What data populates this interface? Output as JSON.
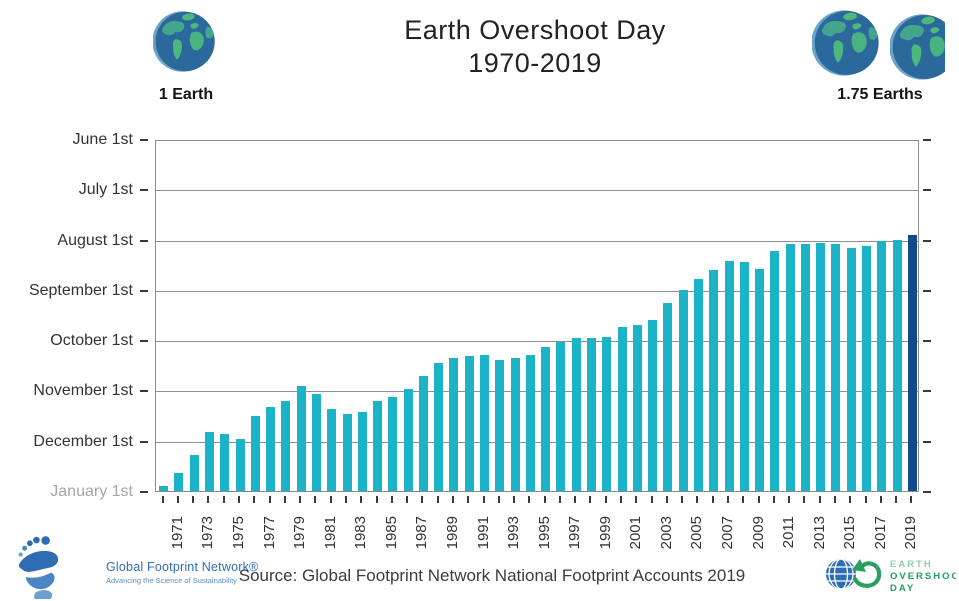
{
  "header": {
    "title_line1": "Earth Overshoot Day",
    "title_line2": "1970-2019",
    "left_badge_label": "1 Earth",
    "right_badge_label": "1.75 Earths"
  },
  "chart_data": {
    "type": "bar",
    "title": "Earth Overshoot Day 1970-2019",
    "y_axis": {
      "tick_labels": [
        "June 1st",
        "July 1st",
        "August 1st",
        "September 1st",
        "October 1st",
        "November 1st",
        "December 1st",
        "January 1st"
      ],
      "muted_tick_label": "January 1st",
      "range": "January 1st (bottom) to June 1st (top)",
      "grid": "on"
    },
    "x_axis": {
      "tick_labels": [
        "1971",
        "1973",
        "1975",
        "1977",
        "1979",
        "1981",
        "1983",
        "1985",
        "1987",
        "1989",
        "1991",
        "1993",
        "1995",
        "1997",
        "1999",
        "2001",
        "2003",
        "2005",
        "2007",
        "2009",
        "2011",
        "2013",
        "2015",
        "2017",
        "2019"
      ],
      "ticks_every_year": true
    },
    "highlight_year": 2019,
    "colors": {
      "bar": "#1db3c6",
      "highlight_bar": "#12498c",
      "grid": "#8f8f8f",
      "axis_text": "#333333",
      "muted_axis_text": "#a6a6a6"
    },
    "bars": [
      {
        "year": 1970,
        "date": "Dec 29",
        "month": 12,
        "day": 29
      },
      {
        "year": 1971,
        "date": "Dec 21",
        "month": 12,
        "day": 21
      },
      {
        "year": 1972,
        "date": "Dec 10",
        "month": 12,
        "day": 10
      },
      {
        "year": 1973,
        "date": "Nov 26",
        "month": 11,
        "day": 26
      },
      {
        "year": 1974,
        "date": "Nov 27",
        "month": 11,
        "day": 27
      },
      {
        "year": 1975,
        "date": "Nov 30",
        "month": 11,
        "day": 30
      },
      {
        "year": 1976,
        "date": "Nov 16",
        "month": 11,
        "day": 16
      },
      {
        "year": 1977,
        "date": "Nov 11",
        "month": 11,
        "day": 11
      },
      {
        "year": 1978,
        "date": "Nov 7",
        "month": 11,
        "day": 7
      },
      {
        "year": 1979,
        "date": "Oct 29",
        "month": 10,
        "day": 29
      },
      {
        "year": 1980,
        "date": "Nov 3",
        "month": 11,
        "day": 3
      },
      {
        "year": 1981,
        "date": "Nov 12",
        "month": 11,
        "day": 12
      },
      {
        "year": 1982,
        "date": "Nov 15",
        "month": 11,
        "day": 15
      },
      {
        "year": 1983,
        "date": "Nov 14",
        "month": 11,
        "day": 14
      },
      {
        "year": 1984,
        "date": "Nov 7",
        "month": 11,
        "day": 7
      },
      {
        "year": 1985,
        "date": "Nov 5",
        "month": 11,
        "day": 5
      },
      {
        "year": 1986,
        "date": "Oct 31",
        "month": 10,
        "day": 31
      },
      {
        "year": 1987,
        "date": "Oct 23",
        "month": 10,
        "day": 23
      },
      {
        "year": 1988,
        "date": "Oct 15",
        "month": 10,
        "day": 15
      },
      {
        "year": 1989,
        "date": "Oct 12",
        "month": 10,
        "day": 12
      },
      {
        "year": 1990,
        "date": "Oct 11",
        "month": 10,
        "day": 11
      },
      {
        "year": 1991,
        "date": "Oct 10",
        "month": 10,
        "day": 10
      },
      {
        "year": 1992,
        "date": "Oct 13",
        "month": 10,
        "day": 13
      },
      {
        "year": 1993,
        "date": "Oct 12",
        "month": 10,
        "day": 12
      },
      {
        "year": 1994,
        "date": "Oct 10",
        "month": 10,
        "day": 10
      },
      {
        "year": 1995,
        "date": "Oct 5",
        "month": 10,
        "day": 5
      },
      {
        "year": 1996,
        "date": "Oct 2",
        "month": 10,
        "day": 2
      },
      {
        "year": 1997,
        "date": "Sep 30",
        "month": 9,
        "day": 30
      },
      {
        "year": 1998,
        "date": "Sep 30",
        "month": 9,
        "day": 30
      },
      {
        "year": 1999,
        "date": "Sep 29",
        "month": 9,
        "day": 29
      },
      {
        "year": 2000,
        "date": "Sep 23",
        "month": 9,
        "day": 23
      },
      {
        "year": 2001,
        "date": "Sep 22",
        "month": 9,
        "day": 22
      },
      {
        "year": 2002,
        "date": "Sep 19",
        "month": 9,
        "day": 19
      },
      {
        "year": 2003,
        "date": "Sep 9",
        "month": 9,
        "day": 9
      },
      {
        "year": 2004,
        "date": "Sep 1",
        "month": 9,
        "day": 1
      },
      {
        "year": 2005,
        "date": "Aug 25",
        "month": 8,
        "day": 25
      },
      {
        "year": 2006,
        "date": "Aug 20",
        "month": 8,
        "day": 20
      },
      {
        "year": 2007,
        "date": "Aug 14",
        "month": 8,
        "day": 14
      },
      {
        "year": 2008,
        "date": "Aug 15",
        "month": 8,
        "day": 15
      },
      {
        "year": 2009,
        "date": "Aug 19",
        "month": 8,
        "day": 19
      },
      {
        "year": 2010,
        "date": "Aug 8",
        "month": 8,
        "day": 8
      },
      {
        "year": 2011,
        "date": "Aug 4",
        "month": 8,
        "day": 4
      },
      {
        "year": 2012,
        "date": "Aug 4",
        "month": 8,
        "day": 4
      },
      {
        "year": 2013,
        "date": "Aug 3",
        "month": 8,
        "day": 3
      },
      {
        "year": 2014,
        "date": "Aug 4",
        "month": 8,
        "day": 4
      },
      {
        "year": 2015,
        "date": "Aug 6",
        "month": 8,
        "day": 6
      },
      {
        "year": 2016,
        "date": "Aug 5",
        "month": 8,
        "day": 5
      },
      {
        "year": 2017,
        "date": "Aug 2",
        "month": 8,
        "day": 2
      },
      {
        "year": 2018,
        "date": "Aug 1",
        "month": 8,
        "day": 1
      },
      {
        "year": 2019,
        "date": "Jul 29",
        "month": 7,
        "day": 29
      }
    ]
  },
  "footer": {
    "source": "Source: Global Footprint Network National Footprint Accounts 2019",
    "gfn_logo": {
      "name": "Global Footprint Network®",
      "tagline": "Advancing the Science of Sustainability"
    },
    "eod_logo": {
      "line1": "EARTH",
      "line2": "OVERSHOOT",
      "line3": "DAY"
    }
  }
}
